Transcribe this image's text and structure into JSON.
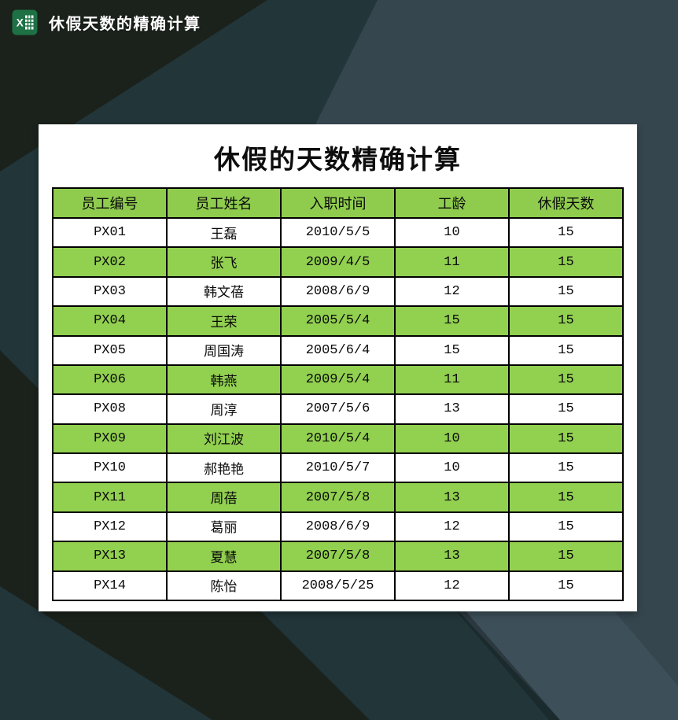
{
  "titlebar": {
    "title": "休假天数的精确计算",
    "icon": "excel-icon"
  },
  "card": {
    "title": "休假的天数精确计算",
    "table": {
      "columns": [
        "员工编号",
        "员工姓名",
        "入职时间",
        "工龄",
        "休假天数"
      ],
      "rows": [
        [
          "PX01",
          "王磊",
          "2010/5/5",
          "10",
          "15"
        ],
        [
          "PX02",
          "张飞",
          "2009/4/5",
          "11",
          "15"
        ],
        [
          "PX03",
          "韩文蓓",
          "2008/6/9",
          "12",
          "15"
        ],
        [
          "PX04",
          "王荣",
          "2005/5/4",
          "15",
          "15"
        ],
        [
          "PX05",
          "周国涛",
          "2005/6/4",
          "15",
          "15"
        ],
        [
          "PX06",
          "韩燕",
          "2009/5/4",
          "11",
          "15"
        ],
        [
          "PX08",
          "周淳",
          "2007/5/6",
          "13",
          "15"
        ],
        [
          "PX09",
          "刘江波",
          "2010/5/4",
          "10",
          "15"
        ],
        [
          "PX10",
          "郝艳艳",
          "2010/5/7",
          "10",
          "15"
        ],
        [
          "PX11",
          "周蓓",
          "2007/5/8",
          "13",
          "15"
        ],
        [
          "PX12",
          "葛丽",
          "2008/6/9",
          "12",
          "15"
        ],
        [
          "PX13",
          "夏慧",
          "2007/5/8",
          "13",
          "15"
        ],
        [
          "PX14",
          "陈怡",
          "2008/5/25",
          "12",
          "15"
        ]
      ]
    }
  },
  "colors": {
    "bg_base": "#36464f",
    "bg_teal": "#223539",
    "bg_dark": "#1b221b",
    "bg_light_wedge": "#3d4f58",
    "header_green": "#8fcc4e",
    "row_green": "#92d050",
    "row_white": "#ffffff",
    "table_border": "#000000",
    "excel_green": "#1e7145"
  }
}
